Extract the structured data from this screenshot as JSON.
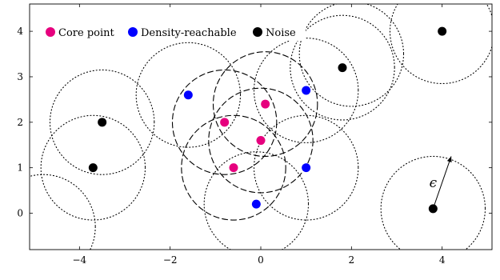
{
  "chart_data": {
    "type": "scatter",
    "title": "",
    "xlabel": "",
    "ylabel": "",
    "xlim": [
      -5.1,
      5.1
    ],
    "ylim": [
      -0.8,
      4.6
    ],
    "xticks": [
      -4,
      -2,
      0,
      2,
      4
    ],
    "yticks": [
      0,
      1,
      2,
      3,
      4
    ],
    "xtick_labels": [
      "−4",
      "−2",
      "0",
      "2",
      "4"
    ],
    "ytick_labels": [
      "0",
      "1",
      "2",
      "3",
      "4"
    ],
    "grid": false,
    "legend_position": "top-left",
    "epsilon": 1.15,
    "epsilon_label": "ϵ",
    "epsilon_arrow": {
      "from": [
        3.8,
        0.1
      ],
      "to": [
        4.2,
        1.25
      ]
    },
    "series": [
      {
        "name": "Core point",
        "color": "#e6007e",
        "circle_style": "dashed",
        "points": [
          [
            -0.8,
            2.0
          ],
          [
            0.1,
            2.4
          ],
          [
            0.0,
            1.6
          ],
          [
            -0.6,
            1.0
          ]
        ]
      },
      {
        "name": "Density-reachable",
        "color": "#0000ff",
        "circle_style": "dotted",
        "points": [
          [
            -1.6,
            2.6
          ],
          [
            1.0,
            2.7
          ],
          [
            1.0,
            1.0
          ],
          [
            -0.1,
            0.2
          ]
        ]
      },
      {
        "name": "Noise",
        "color": "#000000",
        "circle_style": "dotted",
        "points": [
          [
            -3.5,
            2.0
          ],
          [
            -3.7,
            1.0
          ],
          [
            1.8,
            3.2
          ],
          [
            4.0,
            4.0
          ],
          [
            3.8,
            0.1
          ]
        ]
      }
    ],
    "extra_dotted_circles": [
      [
        -4.8,
        -0.3
      ],
      [
        2.0,
        3.5
      ]
    ]
  }
}
